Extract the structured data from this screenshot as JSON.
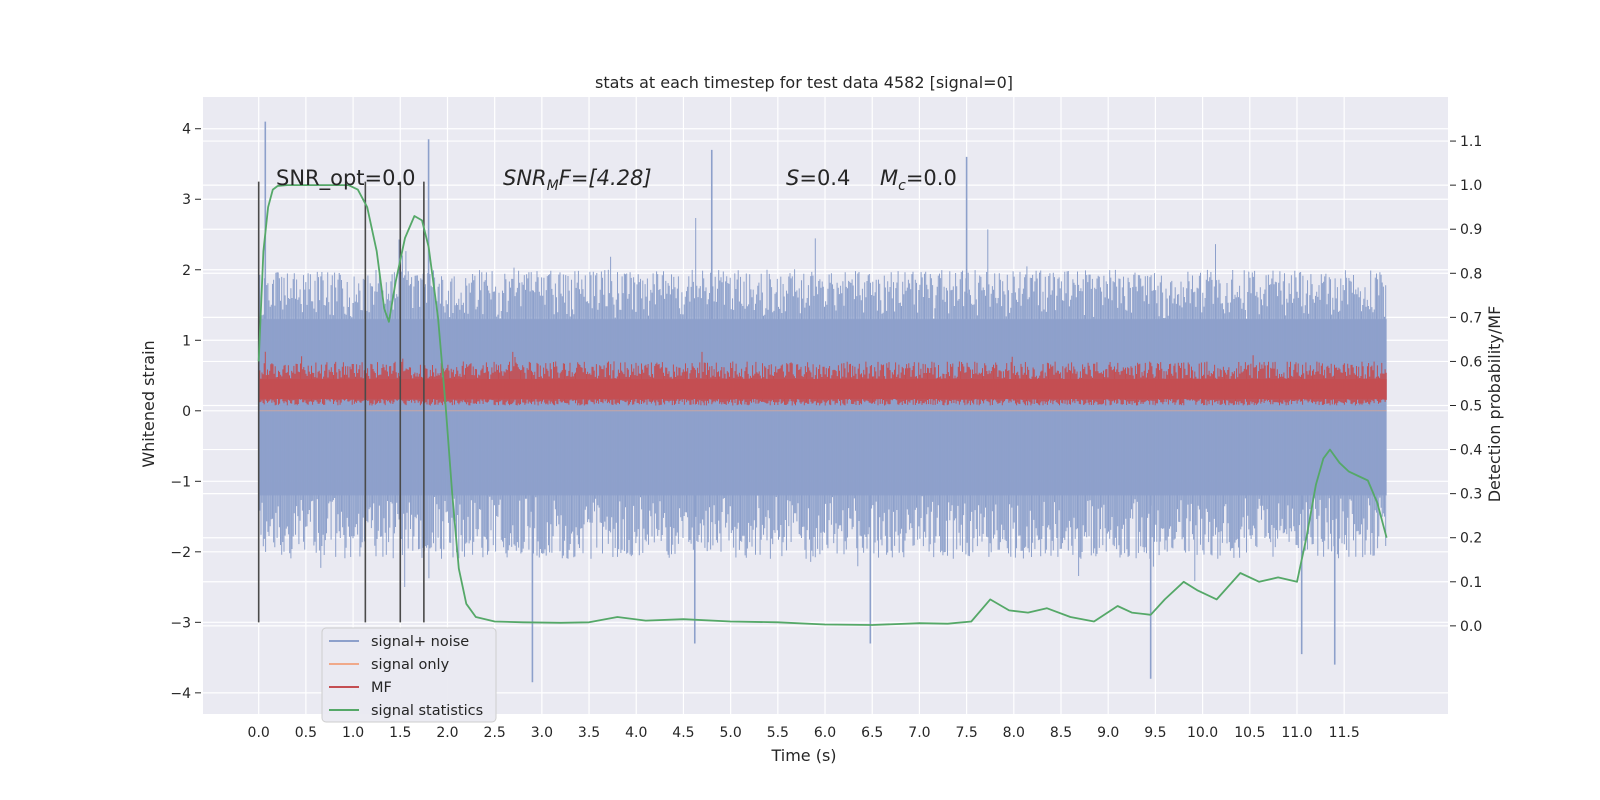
{
  "chart_data": {
    "type": "line",
    "title": "stats at each timestep for test data 4582 [signal=0]",
    "xlabel": "Time (s)",
    "ylabel": "Whitened strain",
    "ylabel_right": "Detection probability/MF",
    "xlim": [
      -0.59,
      12.6
    ],
    "ylim": [
      -4.3,
      4.45
    ],
    "ylim_right": [
      -0.2,
      1.2
    ],
    "x_ticks": [
      "0.0",
      "0.5",
      "1.0",
      "1.5",
      "2.0",
      "2.5",
      "3.0",
      "3.5",
      "4.0",
      "4.5",
      "5.0",
      "5.5",
      "6.0",
      "6.5",
      "7.0",
      "7.5",
      "8.0",
      "8.5",
      "9.0",
      "9.5",
      "10.0",
      "10.5",
      "11.0",
      "11.5"
    ],
    "y_ticks": [
      "4",
      "3",
      "2",
      "1",
      "0",
      "−1",
      "−2",
      "−3",
      "−4"
    ],
    "y_ticks_right": [
      "1.1",
      "1.0",
      "0.9",
      "0.8",
      "0.7",
      "0.6",
      "0.5",
      "0.4",
      "0.3",
      "0.2",
      "0.1",
      "0.0"
    ],
    "grid": true,
    "legend_position": "lower-left",
    "annotations": {
      "snr_opt": "SNR_opt=0.0",
      "snr_mf_base": "SNR",
      "snr_mf_sub": "M",
      "snr_mf_rest": "F=[4.28]",
      "s_base": "S",
      "s_rest": "=0.4",
      "mc_base": "M",
      "mc_sub": "c",
      "mc_rest": "=0.0"
    },
    "vertical_markers_s": [
      0.0,
      1.13,
      1.5,
      1.75
    ],
    "series": [
      {
        "name": "signal+ noise",
        "axis": "left",
        "color": "#8da0cb",
        "x_range": [
          0.0,
          11.95
        ],
        "band_low": -2.1,
        "band_high": 2.0,
        "core_low": -1.2,
        "core_high": 1.3,
        "extremes": [
          {
            "x": 0.07,
            "y": 4.1
          },
          {
            "x": 1.8,
            "y": 3.85
          },
          {
            "x": 4.8,
            "y": 3.7
          },
          {
            "x": 7.5,
            "y": 3.6
          },
          {
            "x": 2.9,
            "y": -3.85
          },
          {
            "x": 9.45,
            "y": -3.8
          },
          {
            "x": 11.4,
            "y": -3.6
          },
          {
            "x": 11.05,
            "y": -3.45
          },
          {
            "x": 4.62,
            "y": -3.3
          },
          {
            "x": 6.48,
            "y": -3.3
          }
        ]
      },
      {
        "name": "signal only",
        "axis": "left",
        "color": "#f0a98a",
        "values_note": "flat at 0"
      },
      {
        "name": "MF",
        "axis": "right",
        "color": "#c44e52",
        "x_range": [
          0.0,
          11.95
        ],
        "band_low": 0.5,
        "band_high": 0.6,
        "peak_max": 0.65
      },
      {
        "name": "signal statistics",
        "axis": "right",
        "color": "#55a868",
        "x": [
          0.0,
          0.05,
          0.1,
          0.15,
          0.2,
          0.3,
          0.5,
          0.8,
          0.95,
          1.05,
          1.15,
          1.25,
          1.33,
          1.38,
          1.45,
          1.55,
          1.65,
          1.73,
          1.8,
          1.9,
          1.98,
          2.05,
          2.12,
          2.2,
          2.3,
          2.5,
          2.8,
          3.2,
          3.5,
          3.8,
          4.1,
          4.5,
          5.0,
          5.5,
          6.0,
          6.5,
          7.0,
          7.3,
          7.55,
          7.75,
          7.95,
          8.15,
          8.35,
          8.6,
          8.85,
          9.1,
          9.25,
          9.45,
          9.6,
          9.8,
          9.95,
          10.15,
          10.4,
          10.6,
          10.8,
          11.0,
          11.1,
          11.2,
          11.28,
          11.35,
          11.45,
          11.55,
          11.65,
          11.75,
          11.85,
          11.95
        ],
        "y": [
          0.6,
          0.85,
          0.95,
          0.99,
          0.998,
          1.0,
          1.0,
          1.0,
          1.0,
          0.99,
          0.95,
          0.85,
          0.72,
          0.69,
          0.78,
          0.88,
          0.93,
          0.92,
          0.86,
          0.7,
          0.5,
          0.3,
          0.13,
          0.05,
          0.02,
          0.01,
          0.008,
          0.007,
          0.008,
          0.02,
          0.012,
          0.015,
          0.01,
          0.008,
          0.003,
          0.002,
          0.006,
          0.005,
          0.01,
          0.06,
          0.035,
          0.03,
          0.04,
          0.02,
          0.01,
          0.045,
          0.03,
          0.025,
          0.06,
          0.1,
          0.08,
          0.06,
          0.12,
          0.1,
          0.11,
          0.1,
          0.2,
          0.32,
          0.38,
          0.4,
          0.37,
          0.35,
          0.34,
          0.33,
          0.28,
          0.2
        ]
      }
    ]
  }
}
